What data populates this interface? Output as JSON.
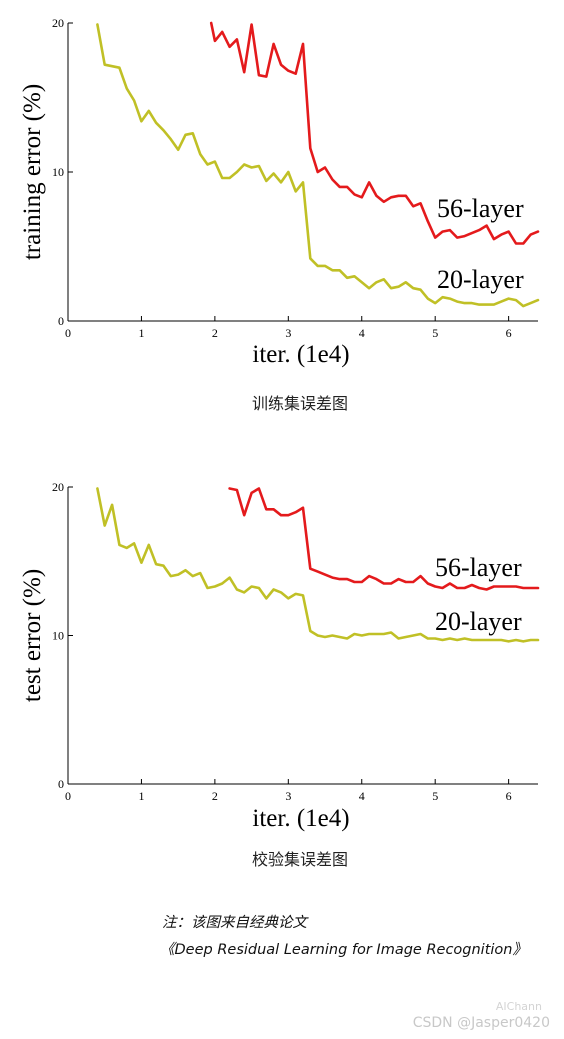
{
  "chart_data": [
    {
      "type": "line",
      "xlabel": "iter. (1e4)",
      "ylabel": "training error (%)",
      "xlim": [
        0,
        6.4
      ],
      "ylim": [
        0,
        20
      ],
      "x_ticks": [
        0,
        1,
        2,
        3,
        4,
        5,
        6
      ],
      "y_ticks": [
        0,
        10,
        20
      ],
      "grid": false,
      "series": [
        {
          "name": "56-layer",
          "color": "#e41a1c",
          "x": [
            1.95,
            2.0,
            2.1,
            2.2,
            2.3,
            2.4,
            2.5,
            2.6,
            2.7,
            2.8,
            2.9,
            3.0,
            3.1,
            3.2,
            3.3,
            3.4,
            3.5,
            3.6,
            3.7,
            3.8,
            3.9,
            4.0,
            4.1,
            4.2,
            4.3,
            4.4,
            4.5,
            4.6,
            4.7,
            4.8,
            4.9,
            5.0,
            5.1,
            5.2,
            5.3,
            5.4,
            5.5,
            5.6,
            5.7,
            5.8,
            5.9,
            6.0,
            6.1,
            6.2,
            6.3,
            6.4
          ],
          "y": [
            20.0,
            18.8,
            19.4,
            18.4,
            18.9,
            16.7,
            19.9,
            16.5,
            16.4,
            18.6,
            17.2,
            16.8,
            16.6,
            18.6,
            11.6,
            10.0,
            10.3,
            9.5,
            9.0,
            9.0,
            8.5,
            8.3,
            9.3,
            8.4,
            8.0,
            8.3,
            8.4,
            8.4,
            7.7,
            7.9,
            6.7,
            5.6,
            6.0,
            6.1,
            5.6,
            5.7,
            5.9,
            6.1,
            6.4,
            5.5,
            5.8,
            6.0,
            5.2,
            5.2,
            5.8,
            6.0
          ]
        },
        {
          "name": "20-layer",
          "color": "#c0c026",
          "x": [
            0.4,
            0.5,
            0.6,
            0.7,
            0.8,
            0.9,
            1.0,
            1.1,
            1.2,
            1.3,
            1.4,
            1.5,
            1.6,
            1.7,
            1.8,
            1.9,
            2.0,
            2.1,
            2.2,
            2.3,
            2.4,
            2.5,
            2.6,
            2.7,
            2.8,
            2.9,
            3.0,
            3.1,
            3.2,
            3.3,
            3.4,
            3.5,
            3.6,
            3.7,
            3.8,
            3.9,
            4.0,
            4.1,
            4.2,
            4.3,
            4.4,
            4.5,
            4.6,
            4.7,
            4.8,
            4.9,
            5.0,
            5.1,
            5.2,
            5.3,
            5.4,
            5.5,
            5.6,
            5.7,
            5.8,
            5.9,
            6.0,
            6.1,
            6.2,
            6.3,
            6.4
          ],
          "y": [
            19.9,
            17.2,
            17.1,
            17.0,
            15.6,
            14.8,
            13.4,
            14.1,
            13.3,
            12.8,
            12.2,
            11.5,
            12.5,
            12.6,
            11.2,
            10.5,
            10.7,
            9.6,
            9.6,
            10.0,
            10.5,
            10.3,
            10.4,
            9.4,
            9.9,
            9.3,
            10.0,
            8.7,
            9.3,
            4.2,
            3.7,
            3.7,
            3.4,
            3.4,
            2.9,
            3.0,
            2.6,
            2.2,
            2.6,
            2.8,
            2.2,
            2.3,
            2.6,
            2.2,
            2.1,
            1.5,
            1.2,
            1.6,
            1.5,
            1.3,
            1.2,
            1.2,
            1.1,
            1.1,
            1.1,
            1.3,
            1.5,
            1.4,
            1.0,
            1.2,
            1.4
          ]
        }
      ]
    },
    {
      "type": "line",
      "xlabel": "iter. (1e4)",
      "ylabel": "test error (%)",
      "xlim": [
        0,
        6.4
      ],
      "ylim": [
        0,
        20
      ],
      "x_ticks": [
        0,
        1,
        2,
        3,
        4,
        5,
        6
      ],
      "y_ticks": [
        0,
        10,
        20
      ],
      "grid": false,
      "series": [
        {
          "name": "56-layer",
          "color": "#e41a1c",
          "x": [
            2.2,
            2.3,
            2.4,
            2.5,
            2.6,
            2.7,
            2.8,
            2.9,
            3.0,
            3.1,
            3.2,
            3.3,
            3.4,
            3.5,
            3.6,
            3.7,
            3.8,
            3.9,
            4.0,
            4.1,
            4.2,
            4.3,
            4.4,
            4.5,
            4.6,
            4.7,
            4.8,
            4.9,
            5.0,
            5.1,
            5.2,
            5.3,
            5.4,
            5.5,
            5.6,
            5.7,
            5.8,
            5.9,
            6.0,
            6.1,
            6.2,
            6.3,
            6.4
          ],
          "y": [
            19.9,
            19.8,
            18.1,
            19.6,
            19.9,
            18.5,
            18.5,
            18.1,
            18.1,
            18.3,
            18.6,
            14.5,
            14.3,
            14.1,
            13.9,
            13.8,
            13.8,
            13.6,
            13.6,
            14.0,
            13.8,
            13.5,
            13.5,
            13.8,
            13.6,
            13.6,
            14.0,
            13.5,
            13.3,
            13.2,
            13.5,
            13.2,
            13.2,
            13.4,
            13.2,
            13.1,
            13.3,
            13.3,
            13.3,
            13.3,
            13.2,
            13.2,
            13.2
          ]
        },
        {
          "name": "20-layer",
          "color": "#c0c026",
          "x": [
            0.4,
            0.5,
            0.6,
            0.7,
            0.8,
            0.9,
            1.0,
            1.1,
            1.2,
            1.3,
            1.4,
            1.5,
            1.6,
            1.7,
            1.8,
            1.9,
            2.0,
            2.1,
            2.2,
            2.3,
            2.4,
            2.5,
            2.6,
            2.7,
            2.8,
            2.9,
            3.0,
            3.1,
            3.2,
            3.3,
            3.4,
            3.5,
            3.6,
            3.7,
            3.8,
            3.9,
            4.0,
            4.1,
            4.2,
            4.3,
            4.4,
            4.5,
            4.6,
            4.7,
            4.8,
            4.9,
            5.0,
            5.1,
            5.2,
            5.3,
            5.4,
            5.5,
            5.6,
            5.7,
            5.8,
            5.9,
            6.0,
            6.1,
            6.2,
            6.3,
            6.4
          ],
          "y": [
            19.9,
            17.4,
            18.8,
            16.1,
            15.9,
            16.2,
            14.9,
            16.1,
            14.8,
            14.7,
            14.0,
            14.1,
            14.4,
            14.0,
            14.2,
            13.2,
            13.3,
            13.5,
            13.9,
            13.1,
            12.9,
            13.3,
            13.2,
            12.5,
            13.1,
            12.9,
            12.5,
            12.8,
            12.7,
            10.3,
            10.0,
            9.9,
            10.0,
            9.9,
            9.8,
            10.1,
            10.0,
            10.1,
            10.1,
            10.1,
            10.2,
            9.8,
            9.9,
            10.0,
            10.1,
            9.8,
            9.8,
            9.7,
            9.8,
            9.7,
            9.8,
            9.7,
            9.7,
            9.7,
            9.7,
            9.7,
            9.6,
            9.7,
            9.6,
            9.7,
            9.7
          ]
        }
      ]
    }
  ],
  "captions": {
    "train": "训练集误差图",
    "test": "校验集误差图"
  },
  "note": {
    "line1": "注：该图来自经典论文",
    "line2": "《Deep Residual Learning for Image Recognition》"
  },
  "watermark": {
    "text": "CSDN @Jasper0420",
    "extra": "AIChann"
  }
}
